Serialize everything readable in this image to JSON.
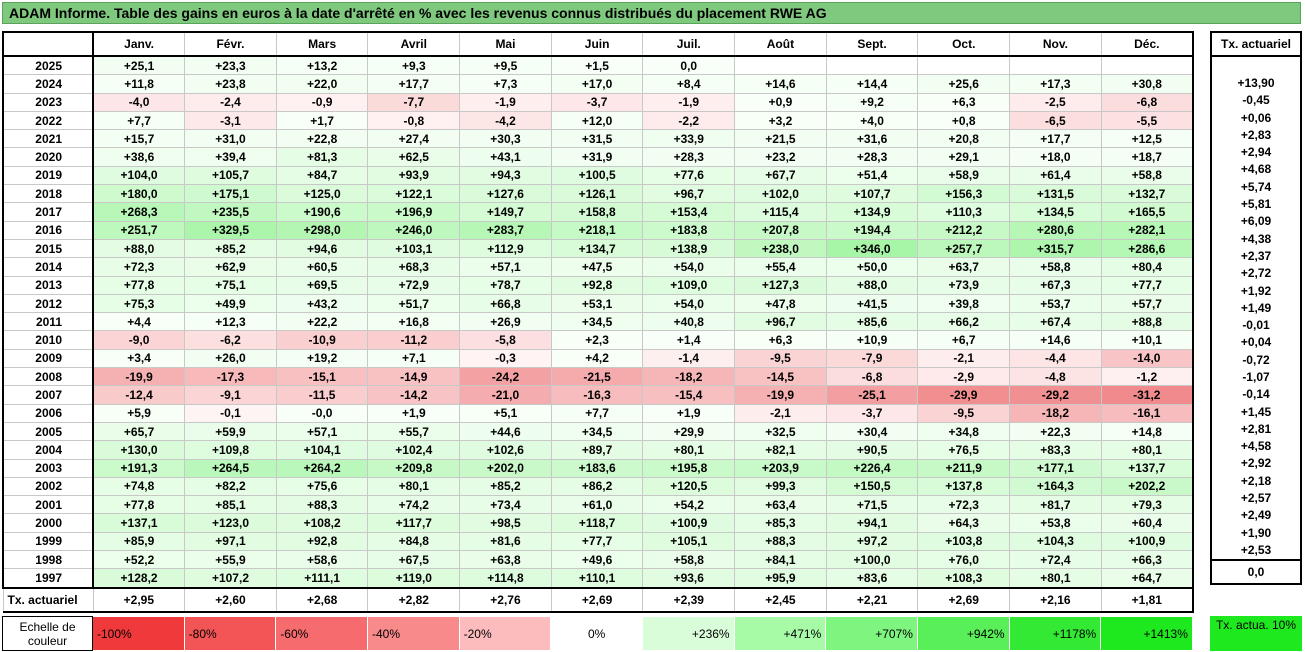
{
  "title": "ADAM Informe. Table des gains en euros à la date d'arrêté en % avec les revenus connus distribués du placement RWE AG",
  "months": [
    "Janv.",
    "Févr.",
    "Mars",
    "Avril",
    "Mai",
    "Juin",
    "Juil.",
    "Août",
    "Sept.",
    "Oct.",
    "Nov.",
    "Déc."
  ],
  "side_header": "Tx. actuariel",
  "rows": [
    {
      "year": "2025",
      "values": [
        "+25,1",
        "+23,3",
        "+13,2",
        "+9,3",
        "+9,5",
        "+1,5",
        "0,0",
        "",
        "",
        "",
        "",
        ""
      ],
      "rate": ""
    },
    {
      "year": "2024",
      "values": [
        "+11,8",
        "+23,8",
        "+22,0",
        "+17,7",
        "+7,3",
        "+17,0",
        "+8,4",
        "+14,6",
        "+14,4",
        "+25,6",
        "+17,3",
        "+30,8"
      ],
      "rate": "+13,90"
    },
    {
      "year": "2023",
      "values": [
        "-4,0",
        "-2,4",
        "-0,9",
        "-7,7",
        "-1,9",
        "-3,7",
        "-1,9",
        "+0,9",
        "+9,2",
        "+6,3",
        "-2,5",
        "-6,8"
      ],
      "rate": "-0,45"
    },
    {
      "year": "2022",
      "values": [
        "+7,7",
        "-3,1",
        "+1,7",
        "-0,8",
        "-4,2",
        "+12,0",
        "-2,2",
        "+3,2",
        "+4,0",
        "+0,8",
        "-6,5",
        "-5,5"
      ],
      "rate": "+0,06"
    },
    {
      "year": "2021",
      "values": [
        "+15,7",
        "+31,0",
        "+22,8",
        "+27,4",
        "+30,3",
        "+31,5",
        "+33,9",
        "+21,5",
        "+31,6",
        "+20,8",
        "+17,7",
        "+12,5"
      ],
      "rate": "+2,83"
    },
    {
      "year": "2020",
      "values": [
        "+38,6",
        "+39,4",
        "+81,3",
        "+62,5",
        "+43,1",
        "+31,9",
        "+28,3",
        "+23,2",
        "+28,3",
        "+29,1",
        "+18,0",
        "+18,7"
      ],
      "rate": "+2,94"
    },
    {
      "year": "2019",
      "values": [
        "+104,0",
        "+105,7",
        "+84,7",
        "+93,9",
        "+94,3",
        "+100,5",
        "+77,6",
        "+67,7",
        "+51,4",
        "+58,9",
        "+61,4",
        "+58,8"
      ],
      "rate": "+4,68"
    },
    {
      "year": "2018",
      "values": [
        "+180,0",
        "+175,1",
        "+125,0",
        "+122,1",
        "+127,6",
        "+126,1",
        "+96,7",
        "+102,0",
        "+107,7",
        "+156,3",
        "+131,5",
        "+132,7"
      ],
      "rate": "+5,74"
    },
    {
      "year": "2017",
      "values": [
        "+268,3",
        "+235,5",
        "+190,6",
        "+196,9",
        "+149,7",
        "+158,8",
        "+153,4",
        "+115,4",
        "+134,9",
        "+110,3",
        "+134,5",
        "+165,5"
      ],
      "rate": "+5,81"
    },
    {
      "year": "2016",
      "values": [
        "+251,7",
        "+329,5",
        "+298,0",
        "+246,0",
        "+283,7",
        "+218,1",
        "+183,8",
        "+207,8",
        "+194,4",
        "+212,2",
        "+280,6",
        "+282,1"
      ],
      "rate": "+6,09"
    },
    {
      "year": "2015",
      "values": [
        "+88,0",
        "+85,2",
        "+94,6",
        "+103,1",
        "+112,9",
        "+134,7",
        "+138,9",
        "+238,0",
        "+346,0",
        "+257,7",
        "+315,7",
        "+286,6"
      ],
      "rate": "+4,38"
    },
    {
      "year": "2014",
      "values": [
        "+72,3",
        "+62,9",
        "+60,5",
        "+68,3",
        "+57,1",
        "+47,5",
        "+54,0",
        "+55,4",
        "+50,0",
        "+63,7",
        "+58,8",
        "+80,4"
      ],
      "rate": "+2,37"
    },
    {
      "year": "2013",
      "values": [
        "+77,8",
        "+75,1",
        "+69,5",
        "+72,9",
        "+78,7",
        "+92,8",
        "+109,0",
        "+127,3",
        "+88,0",
        "+73,9",
        "+67,3",
        "+77,7"
      ],
      "rate": "+2,72"
    },
    {
      "year": "2012",
      "values": [
        "+75,3",
        "+49,9",
        "+43,2",
        "+51,7",
        "+66,8",
        "+53,1",
        "+54,0",
        "+47,8",
        "+41,5",
        "+39,8",
        "+53,7",
        "+57,7"
      ],
      "rate": "+1,92"
    },
    {
      "year": "2011",
      "values": [
        "+4,4",
        "+12,3",
        "+22,2",
        "+16,8",
        "+26,9",
        "+34,5",
        "+40,8",
        "+96,7",
        "+85,6",
        "+66,2",
        "+67,4",
        "+88,8"
      ],
      "rate": "+1,49"
    },
    {
      "year": "2010",
      "values": [
        "-9,0",
        "-6,2",
        "-10,9",
        "-11,2",
        "-5,8",
        "+2,3",
        "+1,4",
        "+6,3",
        "+10,9",
        "+6,7",
        "+14,6",
        "+10,1"
      ],
      "rate": "-0,01"
    },
    {
      "year": "2009",
      "values": [
        "+3,4",
        "+26,0",
        "+19,2",
        "+7,1",
        "-0,3",
        "+4,2",
        "-1,4",
        "-9,5",
        "-7,9",
        "-2,1",
        "-4,4",
        "-14,0"
      ],
      "rate": "+0,04"
    },
    {
      "year": "2008",
      "values": [
        "-19,9",
        "-17,3",
        "-15,1",
        "-14,9",
        "-24,2",
        "-21,5",
        "-18,2",
        "-14,5",
        "-6,8",
        "-2,9",
        "-4,8",
        "-1,2"
      ],
      "rate": "-0,72"
    },
    {
      "year": "2007",
      "values": [
        "-12,4",
        "-9,1",
        "-11,5",
        "-14,2",
        "-21,0",
        "-16,3",
        "-15,4",
        "-19,9",
        "-25,1",
        "-29,9",
        "-29,2",
        "-31,2"
      ],
      "rate": "-1,07"
    },
    {
      "year": "2006",
      "values": [
        "+5,9",
        "-0,1",
        "-0,0",
        "+1,9",
        "+5,1",
        "+7,7",
        "+1,9",
        "-2,1",
        "-3,7",
        "-9,5",
        "-18,2",
        "-16,1"
      ],
      "rate": "-0,14"
    },
    {
      "year": "2005",
      "values": [
        "+65,7",
        "+59,9",
        "+57,1",
        "+55,7",
        "+44,6",
        "+34,5",
        "+29,9",
        "+32,5",
        "+30,4",
        "+34,8",
        "+22,3",
        "+14,8"
      ],
      "rate": "+1,45"
    },
    {
      "year": "2004",
      "values": [
        "+130,0",
        "+109,8",
        "+104,1",
        "+102,4",
        "+102,6",
        "+89,7",
        "+80,1",
        "+82,1",
        "+90,5",
        "+76,5",
        "+83,3",
        "+80,1"
      ],
      "rate": "+2,81"
    },
    {
      "year": "2003",
      "values": [
        "+191,3",
        "+264,5",
        "+264,2",
        "+209,8",
        "+202,0",
        "+183,6",
        "+195,8",
        "+203,9",
        "+226,4",
        "+211,9",
        "+177,1",
        "+137,7"
      ],
      "rate": "+4,58"
    },
    {
      "year": "2002",
      "values": [
        "+74,8",
        "+82,2",
        "+75,6",
        "+80,1",
        "+85,2",
        "+86,2",
        "+120,5",
        "+99,3",
        "+150,5",
        "+137,8",
        "+164,3",
        "+202,2"
      ],
      "rate": "+2,92"
    },
    {
      "year": "2001",
      "values": [
        "+77,8",
        "+85,1",
        "+88,3",
        "+74,2",
        "+73,4",
        "+61,0",
        "+54,2",
        "+63,4",
        "+71,5",
        "+72,3",
        "+81,7",
        "+79,3"
      ],
      "rate": "+2,18"
    },
    {
      "year": "2000",
      "values": [
        "+137,1",
        "+123,0",
        "+108,2",
        "+117,7",
        "+98,5",
        "+118,7",
        "+100,9",
        "+85,3",
        "+94,1",
        "+64,3",
        "+53,8",
        "+60,4"
      ],
      "rate": "+2,57"
    },
    {
      "year": "1999",
      "values": [
        "+85,9",
        "+97,1",
        "+92,8",
        "+84,8",
        "+81,6",
        "+77,7",
        "+105,1",
        "+88,3",
        "+97,2",
        "+103,8",
        "+104,3",
        "+100,9"
      ],
      "rate": "+2,49"
    },
    {
      "year": "1998",
      "values": [
        "+52,2",
        "+55,9",
        "+58,6",
        "+67,5",
        "+63,8",
        "+49,6",
        "+58,8",
        "+84,1",
        "+100,0",
        "+76,0",
        "+72,4",
        "+66,3"
      ],
      "rate": "+1,90"
    },
    {
      "year": "1997",
      "values": [
        "+128,2",
        "+107,2",
        "+111,1",
        "+119,0",
        "+114,8",
        "+110,1",
        "+93,6",
        "+95,9",
        "+83,6",
        "+108,3",
        "+80,1",
        "+64,7"
      ],
      "rate": "+2,53"
    }
  ],
  "actuarial_row": {
    "label": "Tx. actuariel",
    "values": [
      "+2,95",
      "+2,60",
      "+2,68",
      "+2,82",
      "+2,76",
      "+2,69",
      "+2,39",
      "+2,45",
      "+2,21",
      "+2,69",
      "+2,16",
      "+1,81"
    ],
    "rate": "0,0"
  },
  "scale": {
    "label": "Echelle de couleur",
    "steps": [
      {
        "text": "-100%",
        "color": "#f0393b"
      },
      {
        "text": "-80%",
        "color": "#f35456"
      },
      {
        "text": "-60%",
        "color": "#f66b6d"
      },
      {
        "text": "-40%",
        "color": "#f98a8c"
      },
      {
        "text": "-20%",
        "color": "#fcbcbd"
      },
      {
        "text": "0%",
        "color": "#ffffff"
      },
      {
        "text": "+236%",
        "color": "#d9fdd9"
      },
      {
        "text": "+471%",
        "color": "#a7fba7"
      },
      {
        "text": "+707%",
        "color": "#7ef57e"
      },
      {
        "text": "+942%",
        "color": "#58ef58"
      },
      {
        "text": "+1178%",
        "color": "#33e933"
      },
      {
        "text": "+1413%",
        "color": "#1ee91e"
      }
    ],
    "reference": "Tx. actua. 10%",
    "reference_color": "#1ee91e"
  },
  "colors": {
    "title_bg": "#7fc97f",
    "positive_max": "#a6f5a6",
    "negative_max": "#f08a8c"
  }
}
